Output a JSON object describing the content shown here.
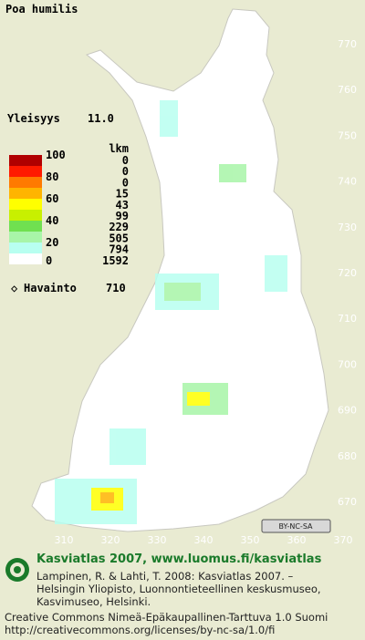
{
  "title": "Poa humilis",
  "frequency": {
    "label": "Yleisyys",
    "value": "11.0"
  },
  "legend": {
    "scale_ticks": [
      100,
      80,
      60,
      40,
      20,
      0
    ],
    "count_header": "lkm",
    "counts": [
      0,
      0,
      0,
      15,
      43,
      99,
      229,
      505,
      794,
      1592
    ],
    "colors": [
      "#b00000",
      "#ff1a00",
      "#ff7a00",
      "#ffb400",
      "#ffff00",
      "#c8f000",
      "#70e050",
      "#a8f5a8",
      "#b8fff0",
      "#ffffff"
    ]
  },
  "observation": {
    "label": "Havainto",
    "count": 710
  },
  "x_ticks": [
    310,
    320,
    330,
    340,
    350,
    360,
    370
  ],
  "y_ticks": [
    670,
    680,
    690,
    700,
    710,
    720,
    730,
    740,
    750,
    760,
    770
  ],
  "license_badge": "BY-NC-SA",
  "footer": {
    "heading": "Kasviatlas 2007, www.luomus.fi/kasviatlas",
    "citation_lines": [
      "Lampinen, R. & Lahti, T. 2008: Kasviatlas 2007. –",
      "Helsingin Yliopisto, Luonnontieteellinen keskusmuseo,",
      "Kasvimuseo, Helsinki."
    ],
    "license_lines": [
      "Creative Commons Nimeä-Epäkaupallinen-Tarttuva 1.0 Suomi",
      "http://creativecommons.org/licenses/by-nc-sa/1.0/fi"
    ]
  }
}
